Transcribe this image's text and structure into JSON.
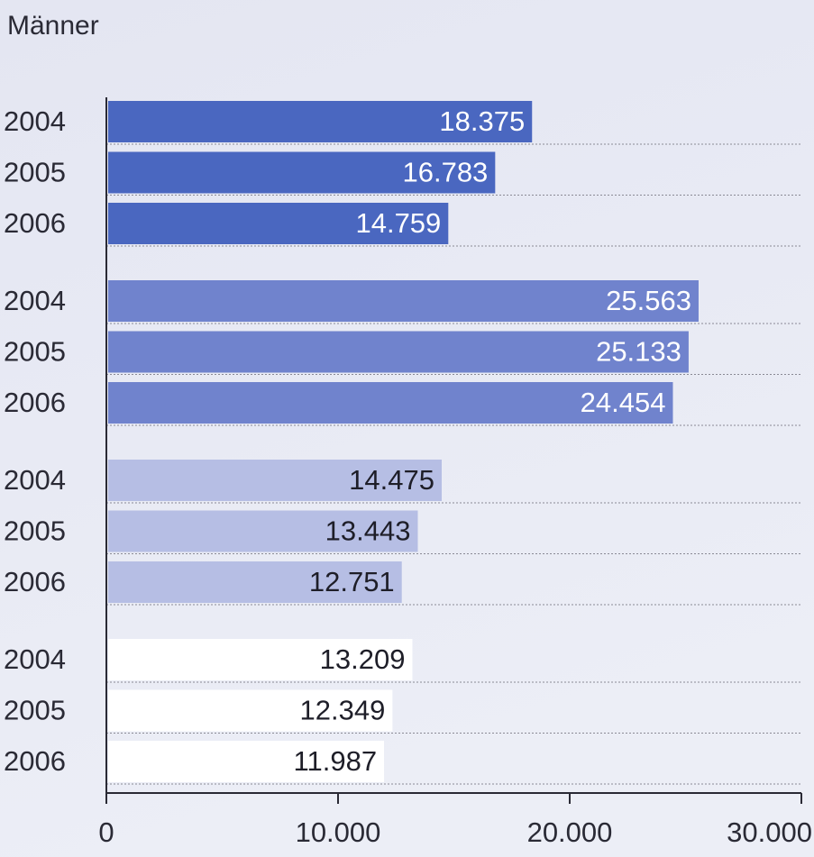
{
  "chart_data": {
    "type": "bar",
    "orientation": "horizontal",
    "title": "Männer",
    "groups": [
      {
        "color": "#4a67c0",
        "label_color": "#ffffff",
        "categories": [
          "2004",
          "2005",
          "2006"
        ],
        "values": [
          18375,
          16783,
          14759
        ],
        "value_labels": [
          "18.375",
          "16.783",
          "14.759"
        ]
      },
      {
        "color": "#7083cd",
        "label_color": "#ffffff",
        "categories": [
          "2004",
          "2005",
          "2006"
        ],
        "values": [
          25563,
          25133,
          24454
        ],
        "value_labels": [
          "25.563",
          "25.133",
          "24.454"
        ]
      },
      {
        "color": "#b6bee4",
        "label_color": "#1e1e28",
        "categories": [
          "2004",
          "2005",
          "2006"
        ],
        "values": [
          14475,
          13443,
          12751
        ],
        "value_labels": [
          "14.475",
          "13.443",
          "12.751"
        ]
      },
      {
        "color": "#ffffff",
        "label_color": "#1e1e28",
        "categories": [
          "2004",
          "2005",
          "2006"
        ],
        "values": [
          13209,
          12349,
          11987
        ],
        "value_labels": [
          "13.209",
          "12.349",
          "11.987"
        ]
      }
    ],
    "xlim": [
      0,
      30000
    ],
    "xticks": [
      0,
      {
        "value": 10000,
        "label": "10.000"
      },
      {
        "value": 20000,
        "label": "20.000"
      },
      {
        "value": 30000,
        "label": "30.000"
      }
    ]
  }
}
